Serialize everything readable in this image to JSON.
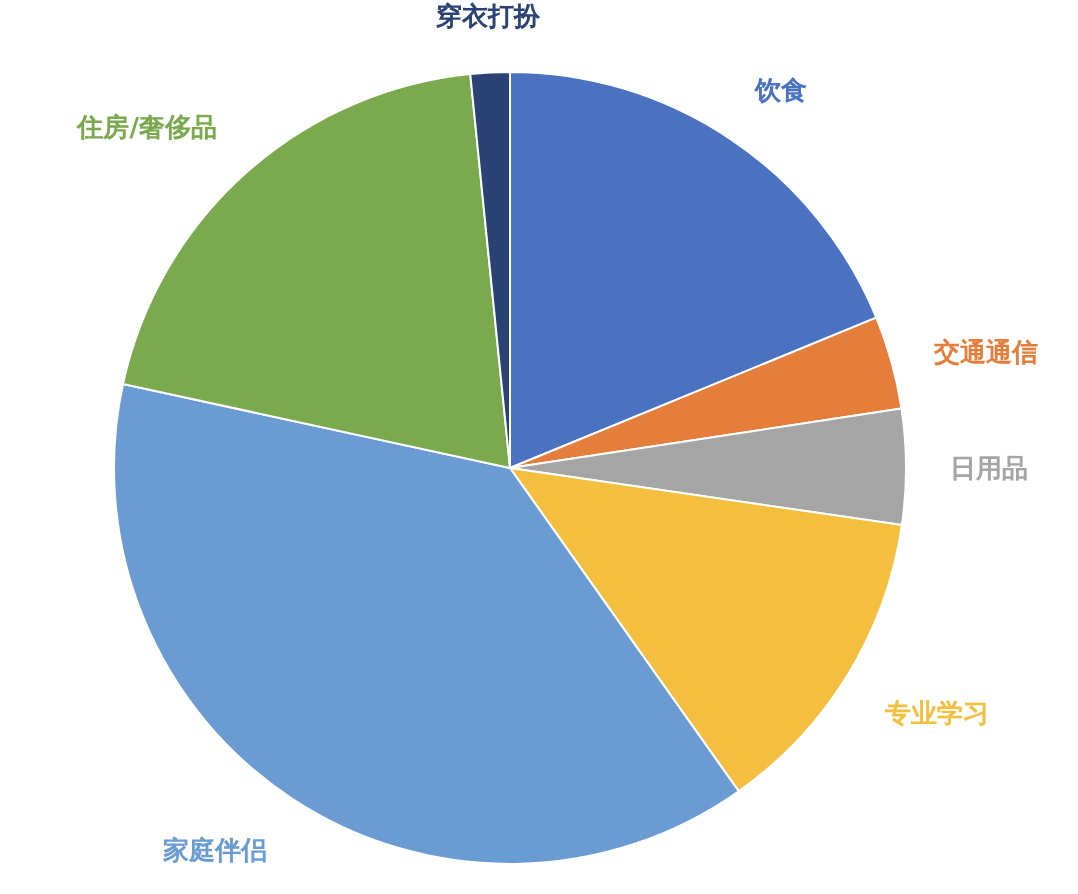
{
  "chart_data": {
    "type": "pie",
    "categories": [
      "饮食",
      "交通通信",
      "日用品",
      "专业学习",
      "家庭伴侣",
      "住房/奢侈品",
      "穿衣打扮"
    ],
    "values": [
      18.8,
      3.8,
      4.7,
      12.9,
      38.2,
      20.0,
      1.6
    ],
    "colors": [
      "#4a72c0",
      "#e57e3a",
      "#a5a5a5",
      "#f4bf3e",
      "#6a9bd2",
      "#7aa94e",
      "#2a4374"
    ]
  }
}
